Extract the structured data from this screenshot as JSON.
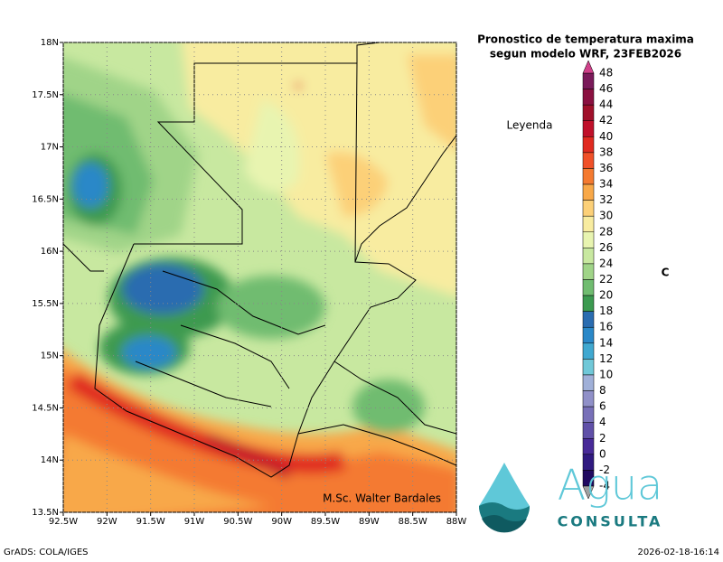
{
  "chart_data": {
    "type": "map",
    "title": "Pronostico de temperatura maxima",
    "subtitle": "segun modelo WRF, 23FEB2026",
    "legend_title": "Leyenda",
    "units": "C",
    "annotation": "M.Sc. Walter Bardales",
    "xlim": [
      -92.5,
      -88
    ],
    "ylim": [
      13.5,
      18
    ],
    "xticks": [
      {
        "value": -92.5,
        "label": "92.5W"
      },
      {
        "value": -92,
        "label": "92W"
      },
      {
        "value": -91.5,
        "label": "91.5W"
      },
      {
        "value": -91,
        "label": "91W"
      },
      {
        "value": -90.5,
        "label": "90.5W"
      },
      {
        "value": -90,
        "label": "90W"
      },
      {
        "value": -89.5,
        "label": "89.5W"
      },
      {
        "value": -89,
        "label": "89W"
      },
      {
        "value": -88.5,
        "label": "88.5W"
      },
      {
        "value": -88,
        "label": "88W"
      }
    ],
    "yticks": [
      {
        "value": 18,
        "label": "18N"
      },
      {
        "value": 17.5,
        "label": "17.5N"
      },
      {
        "value": 17,
        "label": "17N"
      },
      {
        "value": 16.5,
        "label": "16.5N"
      },
      {
        "value": 16,
        "label": "16N"
      },
      {
        "value": 15.5,
        "label": "15.5N"
      },
      {
        "value": 15,
        "label": "15N"
      },
      {
        "value": 14.5,
        "label": "14.5N"
      },
      {
        "value": 14,
        "label": "14N"
      },
      {
        "value": 13.5,
        "label": "13.5N"
      }
    ],
    "grid": true,
    "colorbar": {
      "levels": [
        48,
        46,
        44,
        42,
        40,
        38,
        36,
        34,
        32,
        30,
        28,
        26,
        24,
        22,
        20,
        18,
        16,
        14,
        12,
        10,
        8,
        6,
        4,
        2,
        0,
        -2,
        -4
      ],
      "colors": [
        "#7a1a5a",
        "#8a1040",
        "#a0102a",
        "#c0102a",
        "#e02a20",
        "#f05028",
        "#f47a30",
        "#f8a848",
        "#fcd078",
        "#f8eca0",
        "#e8f4b0",
        "#c8e8a0",
        "#a0d488",
        "#70bc70",
        "#3c9a50",
        "#2a6cb0",
        "#2a88c8",
        "#40a8d0",
        "#70c8d8",
        "#a0b0d8",
        "#9090c8",
        "#7870b8",
        "#6050a8",
        "#482a98",
        "#301a80",
        "#200a60"
      ],
      "over_color": "#d0408a",
      "under_color": "#a0a0a0"
    }
  },
  "logo": {
    "word": "Agua",
    "subword": "CONSULTA"
  },
  "footer": {
    "left": "GrADS: COLA/IGES",
    "right": "2026-02-18-16:14"
  }
}
